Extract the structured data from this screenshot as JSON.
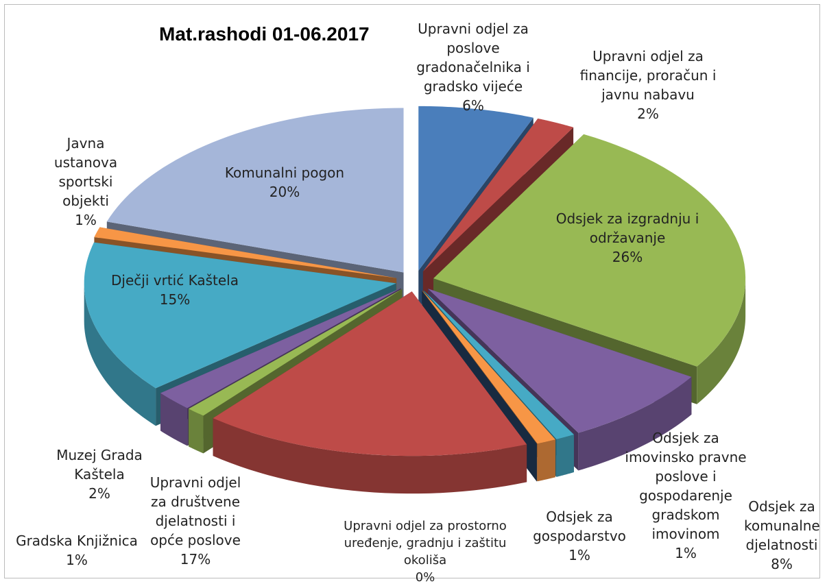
{
  "chart_data": {
    "type": "pie",
    "title": "Mat.rashodi 01-06.2017",
    "categories": [
      "Upravni odjel za poslove gradonačelnika i gradsko vijeće",
      "Upravni odjel za financije, proračun i javnu nabavu",
      "Odsjek za izgradnju i održavanje",
      "Odsjek za komunalne djelatnosti",
      "Odsjek za imovinsko pravne poslove i gospodarenje gradskom imovinom",
      "Odsjek za gospodarstvo",
      "Upravni odjel za prostorno uređenje, gradnju i zaštitu okoliša",
      "Upravni odjel za društvene djelatnosti i opće poslove",
      "Gradska Knjižnica",
      "Muzej Grada Kaštela",
      "Dječji vrtić Kaštela",
      "Javna ustanova sportski objekti",
      "Komunalni pogon"
    ],
    "values": [
      6,
      2,
      26,
      8,
      1,
      1,
      0,
      17,
      1,
      2,
      15,
      1,
      20
    ],
    "value_labels": [
      "6%",
      "2%",
      "26%",
      "8%",
      "1%",
      "1%",
      "0%",
      "17%",
      "1%",
      "2%",
      "15%",
      "1%",
      "20%"
    ],
    "colors": [
      "#4a7ebb",
      "#be4b48",
      "#98b954",
      "#7d60a0",
      "#46aac5",
      "#f79646",
      "#2c4d75",
      "#be4b48",
      "#98b954",
      "#7d60a0",
      "#46aac5",
      "#f79646",
      "#a5b6d9"
    ]
  }
}
